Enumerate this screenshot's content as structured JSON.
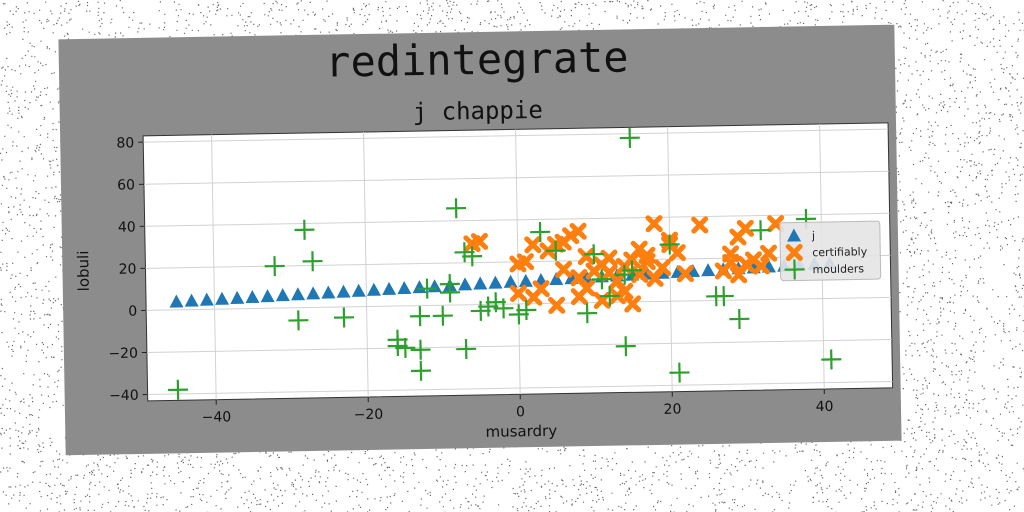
{
  "chart_data": {
    "type": "scatter",
    "title": "redintegrate",
    "subtitle": "j chappie",
    "xlabel": "musardry",
    "ylabel": "lobuli",
    "xlim": [
      -49,
      49
    ],
    "ylim": [
      -43,
      83
    ],
    "xticks": [
      -40,
      -20,
      0,
      20,
      40
    ],
    "yticks": [
      -40,
      -20,
      0,
      20,
      40,
      60,
      80
    ],
    "grid": true,
    "legend_position": "right",
    "series": [
      {
        "name": "j",
        "marker": "triangle",
        "color": "#1f77b4",
        "points": [
          [
            -45,
            4
          ],
          [
            -43,
            4.3
          ],
          [
            -41,
            4.6
          ],
          [
            -39,
            4.9
          ],
          [
            -37,
            5.2
          ],
          [
            -35,
            5.5
          ],
          [
            -33,
            5.8
          ],
          [
            -31,
            6.1
          ],
          [
            -29,
            6.4
          ],
          [
            -27,
            6.7
          ],
          [
            -25,
            7
          ],
          [
            -23,
            7.3
          ],
          [
            -21,
            7.6
          ],
          [
            -19,
            7.9
          ],
          [
            -17,
            8.2
          ],
          [
            -15,
            8.5
          ],
          [
            -13,
            8.8
          ],
          [
            -11,
            9.1
          ],
          [
            -9,
            9.4
          ],
          [
            -7,
            9.7
          ],
          [
            -5,
            10
          ],
          [
            -3,
            10.3
          ],
          [
            -1,
            10.6
          ],
          [
            1,
            10.9
          ],
          [
            3,
            11.2
          ],
          [
            5,
            11.5
          ],
          [
            7,
            11.8
          ],
          [
            9,
            12.1
          ],
          [
            11,
            12.4
          ],
          [
            13,
            12.7
          ],
          [
            15,
            13
          ],
          [
            17,
            13.3
          ],
          [
            19,
            13.6
          ],
          [
            21,
            13.9
          ],
          [
            23,
            14.2
          ],
          [
            25,
            14.5
          ],
          [
            27,
            14.8
          ],
          [
            29,
            15.1
          ],
          [
            31,
            15.4
          ],
          [
            33,
            15.7
          ],
          [
            35,
            16
          ],
          [
            37,
            16.3
          ],
          [
            39,
            16.6
          ],
          [
            41,
            16.9
          ]
        ]
      },
      {
        "name": "certifiably",
        "marker": "x-filled",
        "color": "#ff7f0e",
        "points": [
          [
            -5,
            30
          ],
          [
            -6,
            29
          ],
          [
            0,
            19
          ],
          [
            1,
            20
          ],
          [
            2,
            28
          ],
          [
            4,
            25
          ],
          [
            5,
            28
          ],
          [
            6,
            29
          ],
          [
            6,
            16
          ],
          [
            7,
            32
          ],
          [
            8,
            34
          ],
          [
            8,
            12
          ],
          [
            9,
            7
          ],
          [
            9,
            22
          ],
          [
            10,
            15
          ],
          [
            11,
            18
          ],
          [
            12,
            21
          ],
          [
            12,
            14
          ],
          [
            13,
            10
          ],
          [
            13,
            3
          ],
          [
            14,
            5
          ],
          [
            14,
            17
          ],
          [
            15,
            20
          ],
          [
            15,
            -1
          ],
          [
            16,
            25
          ],
          [
            16,
            13
          ],
          [
            17,
            19
          ],
          [
            17,
            22
          ],
          [
            18,
            11
          ],
          [
            18,
            37
          ],
          [
            19,
            16
          ],
          [
            20,
            29
          ],
          [
            20,
            27
          ],
          [
            21,
            23
          ],
          [
            22,
            13
          ],
          [
            24,
            36
          ],
          [
            27,
            14
          ],
          [
            28,
            18
          ],
          [
            28,
            22
          ],
          [
            29,
            30
          ],
          [
            29,
            12
          ],
          [
            30,
            17
          ],
          [
            30,
            34
          ],
          [
            31,
            19
          ],
          [
            32,
            16
          ],
          [
            33,
            22
          ],
          [
            34,
            36
          ],
          [
            3,
            7
          ],
          [
            5,
            -1
          ],
          [
            8,
            3
          ],
          [
            11,
            1
          ],
          [
            0,
            5
          ],
          [
            2,
            3
          ]
        ]
      },
      {
        "name": "moulders",
        "marker": "plus",
        "color": "#2ca02c",
        "points": [
          [
            -45,
            -38
          ],
          [
            -32,
            20
          ],
          [
            -28,
            37
          ],
          [
            -27,
            22
          ],
          [
            -29,
            -6
          ],
          [
            -23,
            -5
          ],
          [
            -16,
            -16
          ],
          [
            -16,
            -19
          ],
          [
            -15,
            -20
          ],
          [
            -13,
            -21
          ],
          [
            -13,
            -31
          ],
          [
            -13,
            -5
          ],
          [
            -12,
            8
          ],
          [
            -10,
            -5
          ],
          [
            -9,
            10
          ],
          [
            -9,
            6
          ],
          [
            -8,
            46
          ],
          [
            -7,
            25
          ],
          [
            -7,
            -21
          ],
          [
            -6,
            23
          ],
          [
            -5,
            -3
          ],
          [
            -4,
            -1
          ],
          [
            -3,
            1
          ],
          [
            -2,
            -2
          ],
          [
            0,
            -5
          ],
          [
            1,
            -3
          ],
          [
            3,
            34
          ],
          [
            5,
            25
          ],
          [
            9,
            -5
          ],
          [
            10,
            23
          ],
          [
            11,
            11
          ],
          [
            12,
            3
          ],
          [
            14,
            13
          ],
          [
            14,
            -21
          ],
          [
            15,
            15
          ],
          [
            15,
            78
          ],
          [
            20,
            27
          ],
          [
            21,
            -34
          ],
          [
            26,
            2
          ],
          [
            27,
            2
          ],
          [
            29,
            -9
          ],
          [
            32,
            33
          ],
          [
            38,
            38
          ],
          [
            41,
            -29
          ]
        ]
      }
    ]
  }
}
